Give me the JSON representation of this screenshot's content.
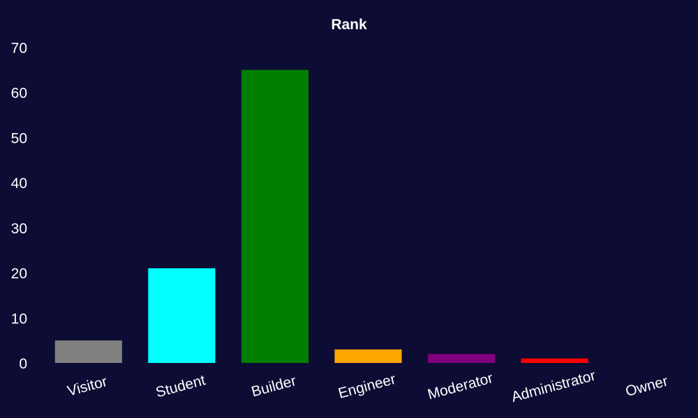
{
  "chart_data": {
    "type": "bar",
    "title": "Rank",
    "xlabel": "",
    "ylabel": "",
    "categories": [
      "Visitor",
      "Student",
      "Builder",
      "Engineer",
      "Moderator",
      "Administrator",
      "Owner"
    ],
    "values": [
      5,
      21,
      65,
      3,
      2,
      1,
      0
    ],
    "colors": [
      "#808080",
      "#00ffff",
      "#008000",
      "#ffa500",
      "#800080",
      "#ff0000",
      "#ffffff"
    ],
    "ylim": [
      0,
      70
    ],
    "yticks": [
      "0",
      "10",
      "20",
      "30",
      "40",
      "50",
      "60",
      "70"
    ],
    "grid": false,
    "legend": "none",
    "background": "#0c0c34",
    "text_color": "#ffffff"
  }
}
